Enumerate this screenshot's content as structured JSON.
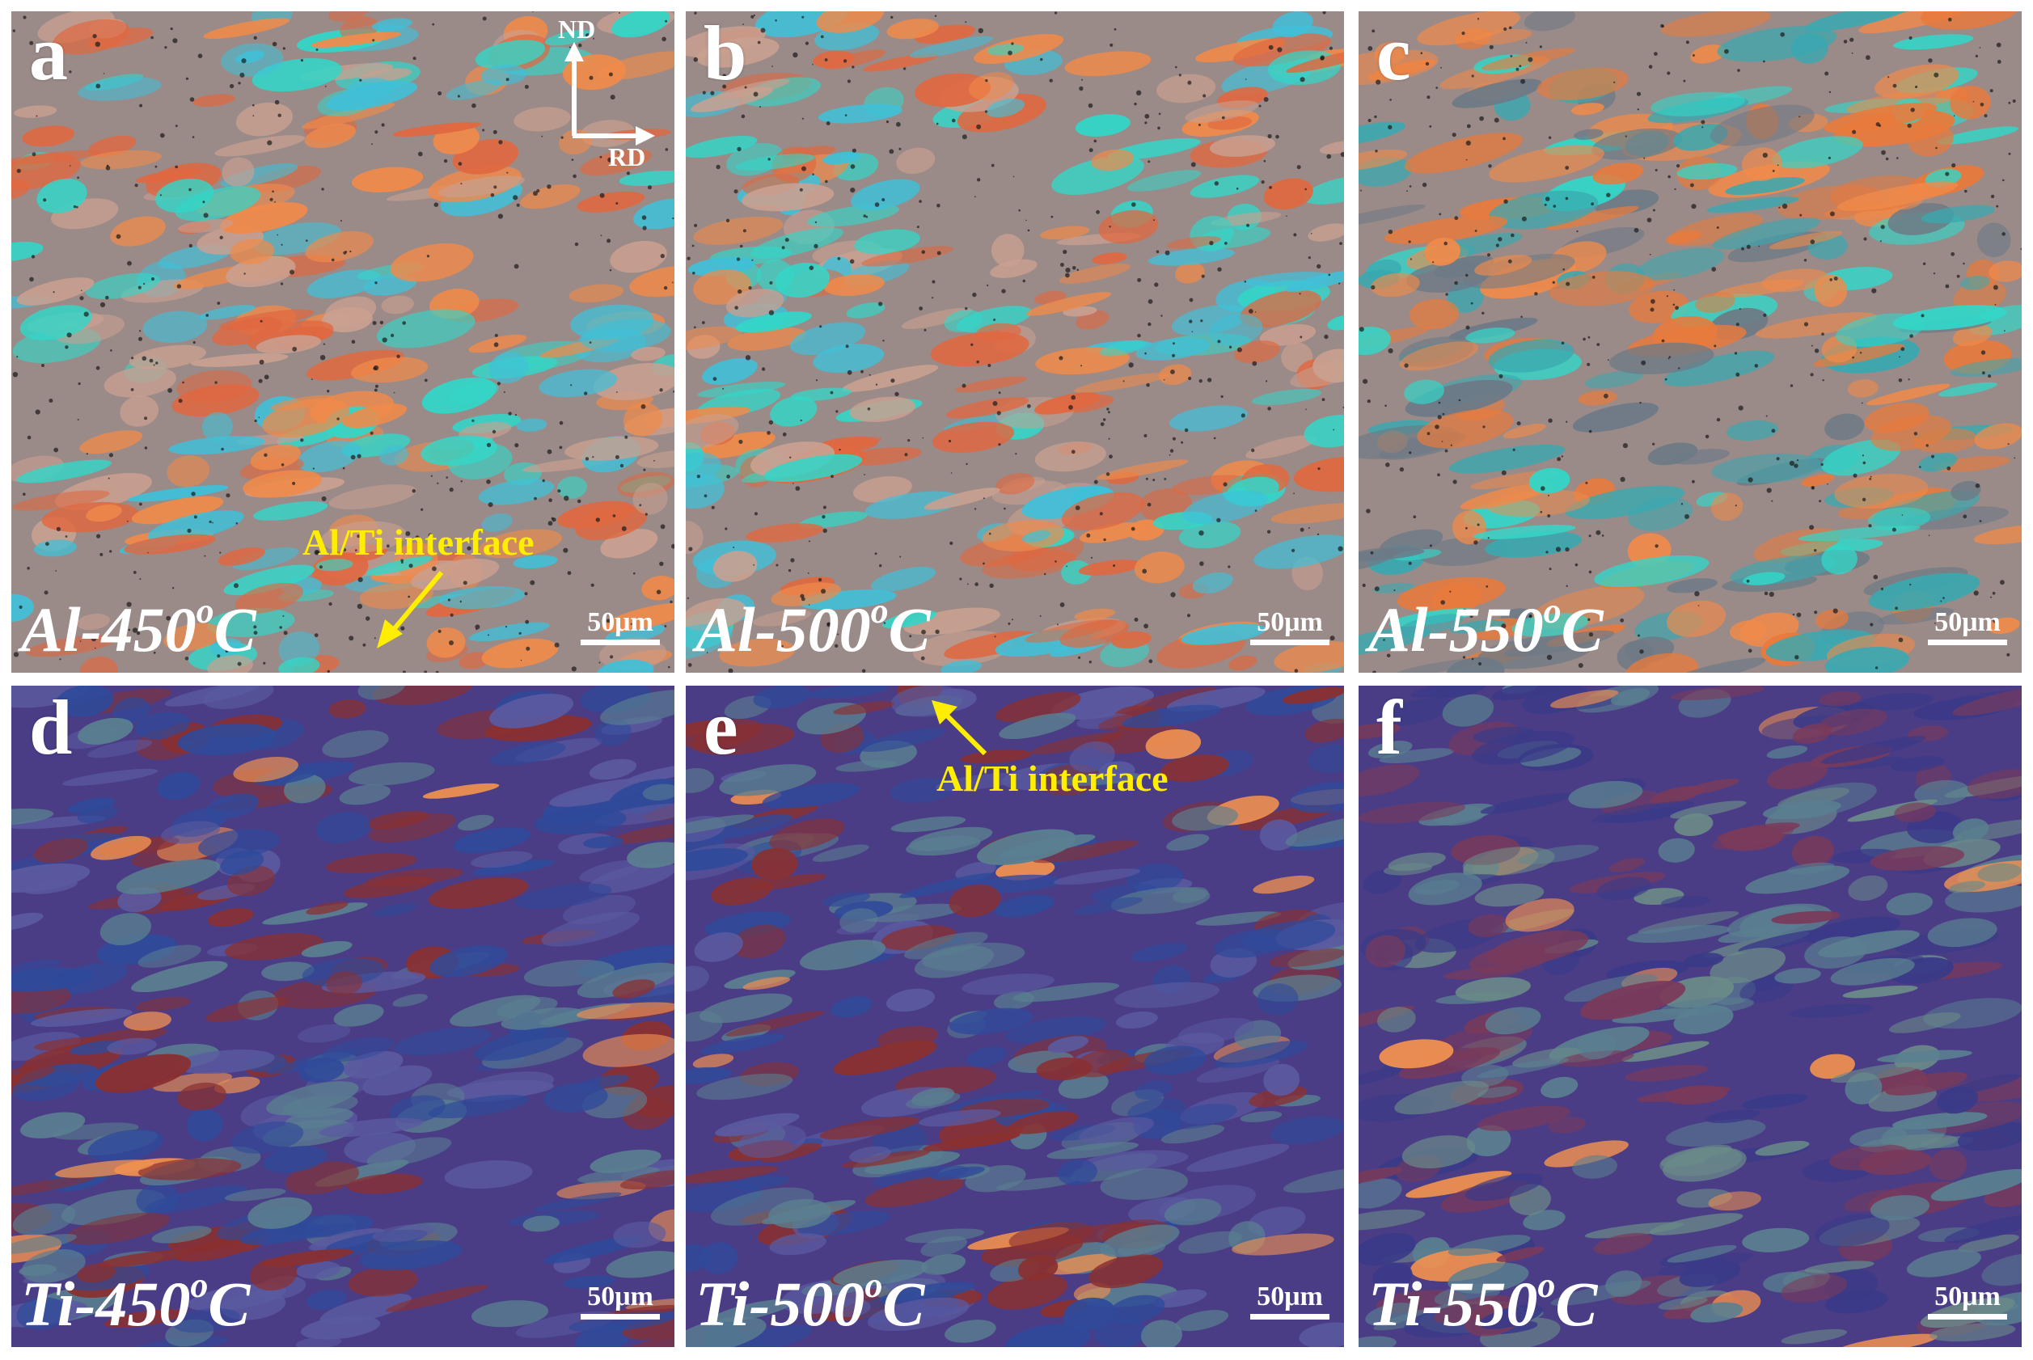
{
  "panels": [
    {
      "id": "a",
      "letter": "a",
      "condition_text": "Al-450",
      "condition_sup": "o",
      "condition_unit": "C",
      "scale_label": "50μm",
      "texture": "al"
    },
    {
      "id": "b",
      "letter": "b",
      "condition_text": "Al-500",
      "condition_sup": "o",
      "condition_unit": "C",
      "scale_label": "50μm",
      "texture": "al"
    },
    {
      "id": "c",
      "letter": "c",
      "condition_text": "Al-550",
      "condition_sup": "o",
      "condition_unit": "C",
      "scale_label": "50μm",
      "texture": "al"
    },
    {
      "id": "d",
      "letter": "d",
      "condition_text": "Ti-450",
      "condition_sup": "o",
      "condition_unit": "C",
      "scale_label": "50μm",
      "texture": "ti"
    },
    {
      "id": "e",
      "letter": "e",
      "condition_text": "Ti-500",
      "condition_sup": "o",
      "condition_unit": "C",
      "scale_label": "50μm",
      "texture": "ti"
    },
    {
      "id": "f",
      "letter": "f",
      "condition_text": "Ti-550",
      "condition_sup": "o",
      "condition_unit": "C",
      "scale_label": "50μm",
      "texture": "ti"
    }
  ],
  "axes": {
    "nd_label": "ND",
    "rd_label": "RD"
  },
  "annotations": {
    "interface_a": "Al/Ti interface",
    "interface_e": "Al/Ti interface"
  },
  "colors": {
    "al_matrix": "#9a8a88",
    "al_cyan": "#33d6c8",
    "al_orange": "#f08a4a",
    "ti_matrix": "#4a3d86",
    "ti_teal": "#5a7f90",
    "ti_orange": "#f09050",
    "label_white": "#ffffff",
    "annotation_yellow": "#ffee00"
  }
}
